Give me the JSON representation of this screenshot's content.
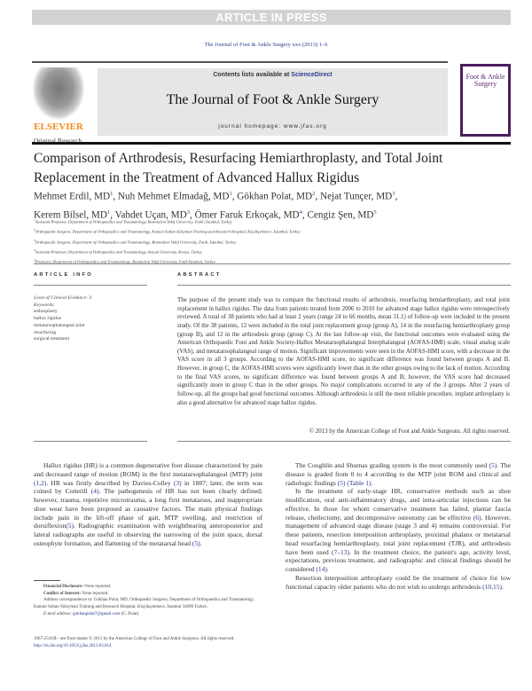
{
  "banner": "ARTICLE IN PRESS",
  "journal_ref": "The Journal of Foot & Ankle Surgery xxx (2013) 1–6",
  "header": {
    "publisher": "ELSEVIER",
    "contents_prefix": "Contents lists available at ",
    "contents_link": "ScienceDirect",
    "journal_title": "The Journal of Foot & Ankle Surgery",
    "homepage": "journal homepage: www.jfas.org",
    "cover_title": "Foot & Ankle Surgery"
  },
  "section": "Original Research",
  "title": "Comparison of Arthrodesis, Resurfacing Hemiarthroplasty, and Total Joint Replacement in the Treatment of Advanced Hallux Rigidus",
  "authors": [
    {
      "name": "Mehmet Erdil, MD",
      "aff": "1"
    },
    {
      "name": "Nuh Mehmet Elmadağ, MD",
      "aff": "1"
    },
    {
      "name": "Gökhan Polat, MD",
      "aff": "2"
    },
    {
      "name": "Nejat Tunçer, MD",
      "aff": "3"
    },
    {
      "name": "Kerem Bilsel, MD",
      "aff": "1"
    },
    {
      "name": "Vahdet Uçan, MD",
      "aff": "3"
    },
    {
      "name": "Ömer Faruk Erkoçak, MD",
      "aff": "4"
    },
    {
      "name": "Cengiz Şen, MD",
      "aff": "5"
    }
  ],
  "affiliations": [
    {
      "n": "1",
      "text": "Assistant Professor, Department of Orthopaedics and Traumatology, Bezmialem Vakif University, Fatih, İstanbul, Turkey"
    },
    {
      "n": "2",
      "text": "Orthopaedic Surgeon, Department of Orthopaedics and Traumatology, Kanuni Sultan Süleyman Training and Research Hospital, Küçükçekmece, İstanbul, Turkey"
    },
    {
      "n": "3",
      "text": "Orthopaedic Surgeon, Department of Orthopaedics and Traumatology, Bezmialem Vakif University, Fatih, İstanbul, Turkey"
    },
    {
      "n": "4",
      "text": "Assistant Professor, Department of Orthopaedics and Traumatology, Selçuk University, Konya, Turkey"
    },
    {
      "n": "5",
      "text": "Professor, Department of Orthopaedics and Traumatology, Bezmialem Vakif University, Fatih İstanbul, Turkey"
    }
  ],
  "article_info": {
    "heading": "ARTICLE INFO",
    "evidence_label": "Level of Clinical Evidence:",
    "evidence_value": "3",
    "keywords_label": "Keywords:",
    "keywords": [
      "arthroplasty",
      "hallux rigidus",
      "metatarsophalangeal joint",
      "resurfacing",
      "surgical treatment"
    ]
  },
  "abstract": {
    "heading": "ABSTRACT",
    "text": "The purpose of the present study was to compare the functional results of arthrodesis, resurfacing hemiarthroplasty, and total joint replacement in hallux rigidus. The data from patients treated from 2006 to 2010 for advanced stage hallux rigidus were retrospectively reviewed. A total of 38 patients who had at least 2 years (range 24 to 66 months, mean 31.1) of follow-up were included in the present study. Of the 38 patients, 12 were included in the total joint replacement group (group A), 14 in the resurfacing hemiarthroplasty group (group B), and 12 in the arthrodesis group (group C). At the last follow-up visit, the functional outcomes were evaluated using the American Orthopaedic Foot and Ankle Society-Hallux Metatarsophalangeal Interphalangeal (AOFAS-HMI) scale, visual analog scale (VAS), and metatarsophalangeal range of motion. Significant improvements were seen in the AOFAS-HMI score, with a decrease in the VAS score in all 3 groups. According to the AOFAS-HMI score, no significant difference was found between groups A and B. However, in group C, the AOFAS-HMI scores were significantly lower than in the other groups owing to the lack of motion. According to the final VAS scores, no significant difference was found between groups A and B; however, the VAS score had decreased significantly more in group C than in the other groups. No major complications occurred in any of the 3 groups. After 2 years of follow-up, all the groups had good functional outcomes. Although arthrodesis is still the most reliable procedure, implant arthroplasty is also a good alternative for advanced stage hallux rigidus.",
    "copyright": "© 2013 by the American College of Foot and Ankle Surgeons. All rights reserved."
  },
  "body_left": [
    [
      {
        "t": "Hallux rigidus (HR) is a common degenerative foot disease characterized by pain and decreased range of motion (ROM) in the first metatarsophalangeal (MTP) joint "
      },
      {
        "t": "(1,2)",
        "link": true
      },
      {
        "t": ". HR was firstly described by Davies-Colley "
      },
      {
        "t": "(3)",
        "link": true
      },
      {
        "t": " in 1887; later, the term was coined by Cotterill "
      },
      {
        "t": "(4)",
        "link": true
      },
      {
        "t": ". The pathogenesis of HR has not been clearly defined; however, trauma, repetitive microtrauma, a long first metatarsus, and inappropriate shoe wear have been proposed as causative factors. The main physical findings include pain in the lift-off phase of gait, MTP swelling, and restriction of dorsiflexion"
      },
      {
        "t": "(5)",
        "link": true
      },
      {
        "t": ". Radiographic examination with weightbearing anteroposterior and lateral radiographs are useful in observing the narrowing of the joint space, dorsal osteophyte formation, and flattening of the metatarsal head "
      },
      {
        "t": "(5)",
        "link": true
      },
      {
        "t": "."
      }
    ]
  ],
  "body_right": [
    [
      {
        "t": "The Coughlin and Shurnas grading system is the most commonly used "
      },
      {
        "t": "(5)",
        "link": true
      },
      {
        "t": ". The disease is graded from 0 to 4 according to the MTP joint ROM and clinical and radiologic findings "
      },
      {
        "t": "(5)",
        "link": true
      },
      {
        "t": " "
      },
      {
        "t": "(Table 1)",
        "link": true
      },
      {
        "t": "."
      }
    ],
    [
      {
        "t": "In the treatment of early-stage HR, conservative methods such as shoe modification, oral anti-inflammatory drugs, and intra-articular injections can be effective. In those for whom conservative treatment has failed, plantar fascia release, cheilectomy, and decompressive osteotomy can be effective "
      },
      {
        "t": "(6)",
        "link": true
      },
      {
        "t": ". However, management of advanced stage disease (stage 3 and 4) remains controversial. For these patients, resection interposition arthroplasty, proximal phalanx or metatarsal head resurfacing hemiarthroplasty, total joint replacement (TJR), and arthrodesis have been used "
      },
      {
        "t": "(7–13)",
        "link": true
      },
      {
        "t": ". In the treatment choice, the patient's age, activity level, expectations, previous treatment, and radiographic and clinical findings should be considered "
      },
      {
        "t": "(14)",
        "link": true
      },
      {
        "t": "."
      }
    ],
    [
      {
        "t": "Resection interposition arthroplasty could be the treatment of choice for low functional capacity older patients who do not wish to undergo arthrodesis "
      },
      {
        "t": "(10,15)",
        "link": true
      },
      {
        "t": "."
      }
    ]
  ],
  "footnotes": {
    "financial_label": "Financial Disclosure:",
    "financial": " None reported.",
    "conflict_label": "Conflict of Interest:",
    "conflict": " None reported.",
    "address": "Address correspondence to: Gökhan Polat, MD, Orthopaedic Surgeon, Department of Orthopaedics and Traumatology, Kanuni Sultan Süleyman Training and Research Hospital, Küçükçekmece, İstanbul 34090 Turkey.",
    "email_label": "E-mail address:",
    "email": "gokhanpolat7@gmail.com",
    "email_suffix": " (G. Polat)."
  },
  "issn": "1067-2516/$ - see front matter © 2013 by the American College of Foot and Ankle Surgeons. All rights reserved.",
  "doi": "http://dx.doi.org/10.1053/j.jfas.2013.03.014",
  "colors": {
    "link": "#2b3a8c",
    "publisher": "#f08a1c",
    "cover": "#4b1f5e",
    "banner": "#d2d2d2"
  }
}
